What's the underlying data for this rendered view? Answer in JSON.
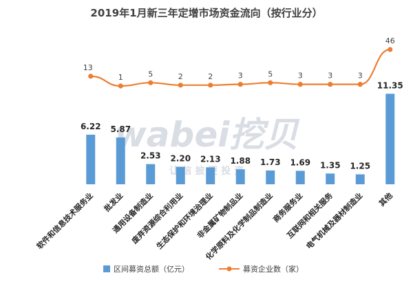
{
  "chart_data": {
    "type": "bar+line",
    "title": "2019年1月新三年定增市场资金流向（按行业分）",
    "categories": [
      "软件和信息技术服务业",
      "批发业",
      "通用设备制造业",
      "废弃资源综合利用业",
      "生态保护和环境治理业",
      "非金属矿物制品业",
      "化学原料及化学制品制造业",
      "商务服务业",
      "互联网和相关服务",
      "电气机械及器材制造业",
      "其他"
    ],
    "series": [
      {
        "name": "区间募资总额（亿元）",
        "type": "bar",
        "color": "#5b9bd5",
        "values": [
          6.22,
          5.87,
          2.53,
          2.2,
          2.13,
          1.88,
          1.73,
          1.69,
          1.35,
          1.25,
          11.35
        ],
        "labels": [
          "6.22",
          "5.87",
          "2.53",
          "2.20",
          "2.13",
          "1.88",
          "1.73",
          "1.69",
          "1.35",
          "1.25",
          "11.35"
        ]
      },
      {
        "name": "募资企业数（家）",
        "type": "line",
        "color": "#ed7d31",
        "values": [
          13,
          1,
          5,
          2,
          2,
          3,
          5,
          3,
          3,
          3,
          46
        ],
        "labels": [
          "13",
          "1",
          "5",
          "2",
          "2",
          "3",
          "5",
          "3",
          "3",
          "3",
          "46"
        ]
      }
    ],
    "legend_position": "bottom",
    "watermark": "wabei挖贝",
    "watermark_sub": "让 信 披 更 投 资"
  }
}
